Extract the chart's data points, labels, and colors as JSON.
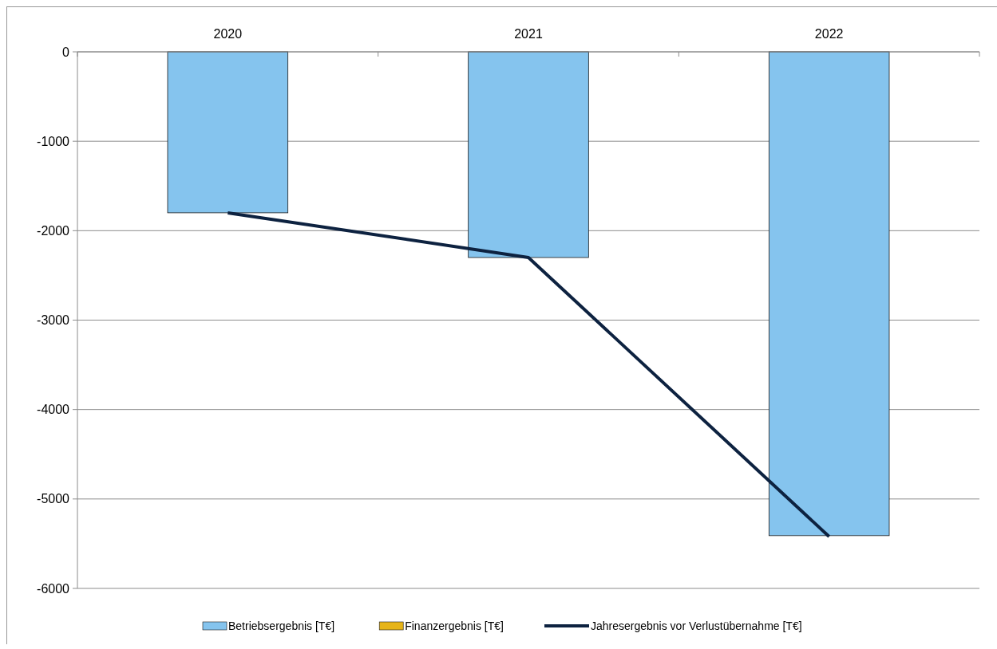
{
  "chart_data": {
    "type": "bar",
    "categories": [
      "2020",
      "2021",
      "2022"
    ],
    "series": [
      {
        "name": "Betriebsergebnis [T€]",
        "color": "#85c4ee",
        "values": [
          -1800,
          -2300,
          -5410
        ]
      },
      {
        "name": "Finanzergebnis [T€]",
        "color": "#e6b418",
        "values": [
          0,
          0,
          0
        ]
      },
      {
        "name": "Jahresergebnis vor Verlustübernahme [T€]",
        "type": "line",
        "color": "#0d2240",
        "values": [
          -1800,
          -2300,
          -5420
        ]
      }
    ],
    "ylim": [
      -6000,
      0
    ],
    "yticks": [
      0,
      -1000,
      -2000,
      -3000,
      -4000,
      -5000,
      -6000
    ],
    "grid": "y",
    "legend": "bottom",
    "marker": "none"
  }
}
